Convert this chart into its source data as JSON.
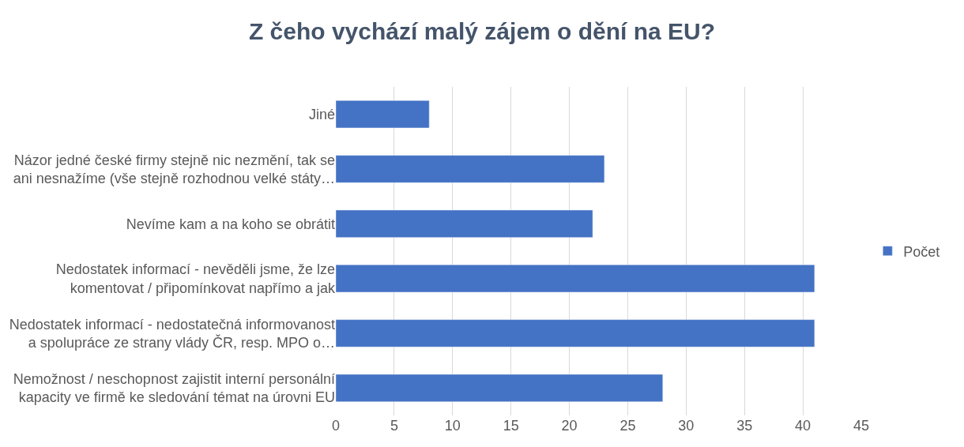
{
  "chart_data": {
    "type": "bar",
    "orientation": "horizontal",
    "title": "Z čeho vychází malý zájem o dění na EU?",
    "categories": [
      "Jiné",
      "Názor jedné české firmy stejně nic nezmění, tak se\nani nesnažíme (vše stejně rozhodnou velké státy…",
      "Nevíme kam a na koho se obrátit",
      "Nedostatek informací - nevěděli jsme, že lze\nkomentovat / připomínkovat napřímo a jak",
      "Nedostatek informací - nedostatečná informovanost\na spolupráce ze strany vlády ČR, resp. MPO o…",
      "Nemožnost / neschopnost zajistit interní personální\nkapacity ve firmě ke sledování témat na úrovni EU"
    ],
    "series": [
      {
        "name": "Počet",
        "color": "#4472c4",
        "values": [
          8,
          23,
          22,
          41,
          41,
          28
        ]
      }
    ],
    "xlim": [
      0,
      45
    ],
    "xticks": [
      0,
      5,
      10,
      15,
      20,
      25,
      30,
      35,
      40,
      45
    ],
    "grid": "x",
    "legend": "right"
  }
}
